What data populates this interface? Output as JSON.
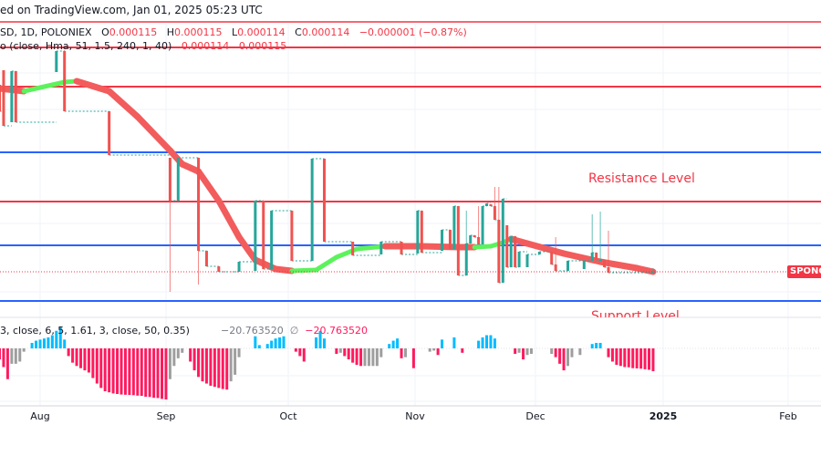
{
  "header": {
    "published": "ed on TradingView.com, Jan 01, 2025 05:23 UTC",
    "symbol": "SD, 1D, POLONIEX",
    "ohlc": {
      "o_label": "O",
      "o": "0.000115",
      "h_label": "H",
      "h": "0.000115",
      "l_label": "L",
      "l": "0.000114",
      "c_label": "C",
      "c": "0.000114",
      "change": "−0.000001 (−0.87%)"
    },
    "indicator": "o (close, Hma, 51, 1.5, 240, 1, 40)",
    "indicator_values": [
      "0.000114",
      "0.000115"
    ]
  },
  "annotations": {
    "resistance": "Resistance Level",
    "support": "Support Level"
  },
  "price_tag": "SPONG",
  "oscillator": {
    "params": "3, close, 6, 5, 1.61, 3, close, 50, 0.35)",
    "value1": "−20.763520",
    "empty_symbol": "∅",
    "value2": "−20.763520"
  },
  "x_axis": [
    "Aug",
    "Sep",
    "Oct",
    "Nov",
    "Dec",
    "2025",
    "Feb"
  ],
  "colors": {
    "up": "#26a69a",
    "down": "#ef5350",
    "hull_up": "#5cf25c",
    "hull_down": "#f25c5c",
    "level_red": "#f23645",
    "level_blue": "#2962ff",
    "hist_pos": "#00bcff",
    "hist_neg_falling": "#ff1a5e",
    "hist_neg_rising": "#9e9e9e"
  },
  "chart_data": [
    {
      "type": "candlestick",
      "x_ticks": [
        "Aug",
        "Sep",
        "Oct",
        "Nov",
        "Dec",
        "2025",
        "Feb"
      ],
      "last_price": 0.000114,
      "candles_ohlc": [
        [
          "2024-07-22",
          0.00016525,
          0.00016525,
          0.000158,
          0.000158
        ],
        [
          "2024-07-23",
          0.00016925,
          0.00016925,
          0.000154,
          0.000154
        ],
        [
          "2024-07-25",
          0.000155,
          0.000169,
          0.000155,
          0.000169
        ],
        [
          "2024-07-26",
          0.000169,
          0.000169,
          0.000155,
          0.000155
        ],
        [
          "2024-08-05",
          0.00016875,
          0.0001745,
          0.00016875,
          0.0001745
        ],
        [
          "2024-08-07",
          0.0001745,
          0.00017475,
          0.000158,
          0.000158
        ],
        [
          "2024-08-18",
          0.000158,
          0.000158,
          0.000146,
          0.000146
        ],
        [
          "2024-09-02",
          0.00014525,
          0.00014525,
          0.0001085,
          0.0001335
        ],
        [
          "2024-09-04",
          0.0001335,
          0.00014525,
          0.0001335,
          0.00014525
        ],
        [
          "2024-09-09",
          0.00014525,
          0.00014525,
          0.0001105,
          0.00011975
        ],
        [
          "2024-09-11",
          0.00011975,
          0.00011975,
          0.0001155,
          0.0001155
        ],
        [
          "2024-09-14",
          0.0001155,
          0.0001155,
          0.000114,
          0.000114
        ],
        [
          "2024-09-19",
          0.000114,
          0.00011675,
          0.000114,
          0.00011675
        ],
        [
          "2024-09-23",
          0.00011425,
          0.0001335,
          0.00011425,
          0.0001335
        ],
        [
          "2024-09-25",
          0.0001335,
          0.0001335,
          0.00011475,
          0.00011475
        ],
        [
          "2024-09-27",
          0.00011475,
          0.00013075,
          0.00011475,
          0.00013075
        ],
        [
          "2024-10-02",
          0.00013075,
          0.00013075,
          0.000117,
          0.000117
        ],
        [
          "2024-10-07",
          0.000117,
          0.000145,
          0.000117,
          0.000145
        ],
        [
          "2024-10-10",
          0.000145,
          0.000145,
          0.00012225,
          0.00012225
        ],
        [
          "2024-10-17",
          0.00012225,
          0.00012225,
          0.0001185,
          0.0001185
        ],
        [
          "2024-10-24",
          0.00011875,
          0.00012225,
          0.00011875,
          0.00012225
        ],
        [
          "2024-10-29",
          0.00012225,
          0.00012225,
          0.00011875,
          0.00011875
        ],
        [
          "2024-11-02",
          0.000119,
          0.00013075,
          0.000119,
          0.00013075
        ],
        [
          "2024-11-03",
          0.00013075,
          0.00013075,
          0.00011925,
          0.00011925
        ],
        [
          "2024-11-08",
          0.00011975,
          0.0001255,
          0.00011975,
          0.0001255
        ],
        [
          "2024-11-10",
          0.0001255,
          0.0001255,
          0.00012025,
          0.00012025
        ],
        [
          "2024-11-11",
          0.00012025,
          0.000132,
          0.00012025,
          0.000132
        ],
        [
          "2024-11-12",
          0.000132,
          0.000132,
          0.000113,
          0.000113
        ],
        [
          "2024-11-14",
          0.000113,
          0.00013075,
          0.000113,
          0.00012175
        ],
        [
          "2024-11-15",
          0.00012175,
          0.000124,
          0.00012175,
          0.000124
        ],
        [
          "2024-11-16",
          0.000124,
          0.000124,
          0.0001235,
          0.0001235
        ],
        [
          "2024-11-17",
          0.0001235,
          0.000132,
          0.0001215,
          0.0001215
        ],
        [
          "2024-11-18",
          0.0001215,
          0.000132,
          0.0001215,
          0.000132
        ],
        [
          "2024-11-19",
          0.000132,
          0.00013275,
          0.000132,
          0.00013275
        ],
        [
          "2024-11-20",
          0.0001325,
          0.0001325,
          0.000132,
          0.000132
        ],
        [
          "2024-11-21",
          0.000132,
          0.00013725,
          0.00012825,
          0.00012825
        ],
        [
          "2024-11-22",
          0.00012825,
          0.00013725,
          0.000111,
          0.000111
        ],
        [
          "2024-11-23",
          0.000111,
          0.000134,
          0.000111,
          0.000134
        ],
        [
          "2024-11-24",
          0.00012675,
          0.00012675,
          0.00011525,
          0.00011525
        ],
        [
          "2024-11-25",
          0.00011525,
          0.00012375,
          0.00011525,
          0.00012375
        ],
        [
          "2024-11-26",
          0.00012375,
          0.00012375,
          0.00011525,
          0.00011525
        ],
        [
          "2024-11-27",
          0.00011525,
          0.0001195,
          0.00011525,
          0.0001195
        ],
        [
          "2024-11-29",
          0.00011525,
          0.00011875,
          0.00011525,
          0.00011875
        ],
        [
          "2024-12-02",
          0.00011875,
          0.0001195,
          0.00011875,
          0.0001195
        ],
        [
          "2024-12-05",
          0.0001195,
          0.0001195,
          0.000116,
          0.000116
        ],
        [
          "2024-12-06",
          0.000116,
          0.0001235,
          0.00011425,
          0.00011425
        ],
        [
          "2024-12-09",
          0.00011425,
          0.000117,
          0.00011425,
          0.000117
        ],
        [
          "2024-12-13",
          0.00011475,
          0.000117,
          0.00011475,
          0.000117
        ],
        [
          "2024-12-15",
          0.000117,
          0.00012975,
          0.000117,
          0.00011925
        ],
        [
          "2024-12-16",
          0.00011925,
          0.00011925,
          0.00011725,
          0.00011725
        ],
        [
          "2024-12-17",
          0.00011725,
          0.0001305,
          0.00011725,
          0.00011725
        ],
        [
          "2024-12-18",
          0.00011725,
          0.00011725,
          0.00011525,
          0.00011525
        ],
        [
          "2024-12-19",
          0.00011525,
          0.00012525,
          0.00011375,
          0.00011375
        ],
        [
          "2024-12-30",
          0.000114,
          0.000115,
          0.000114,
          0.000114
        ]
      ],
      "hull_ribbon": [
        [
          "2024-07-22",
          0.00016425
        ],
        [
          "2024-07-28",
          0.0001635
        ],
        [
          "2024-08-07",
          0.000166
        ],
        [
          "2024-08-10",
          0.00016625
        ],
        [
          "2024-08-18",
          0.0001635
        ],
        [
          "2024-08-25",
          0.0001565
        ],
        [
          "2024-09-02",
          0.00014725
        ],
        [
          "2024-09-05",
          0.0001435
        ],
        [
          "2024-09-09",
          0.0001415
        ],
        [
          "2024-09-14",
          0.0001335
        ],
        [
          "2024-09-19",
          0.0001235
        ],
        [
          "2024-09-23",
          0.00011725
        ],
        [
          "2024-09-28",
          0.00011475
        ],
        [
          "2024-10-02",
          0.00011425
        ],
        [
          "2024-10-08",
          0.0001145
        ],
        [
          "2024-10-13",
          0.000118
        ],
        [
          "2024-10-18",
          0.00012025
        ],
        [
          "2024-10-25",
          0.000121
        ],
        [
          "2024-11-03",
          0.000121
        ],
        [
          "2024-11-12",
          0.00012075
        ],
        [
          "2024-11-16",
          0.00012075
        ],
        [
          "2024-11-20",
          0.000121
        ],
        [
          "2024-11-23",
          0.000122
        ],
        [
          "2024-11-25",
          0.000123
        ],
        [
          "2024-11-29",
          0.00012175
        ],
        [
          "2024-12-08",
          0.000119
        ],
        [
          "2024-12-17",
          0.00011675
        ],
        [
          "2024-12-26",
          0.000115
        ],
        [
          "2024-12-30",
          0.000114
        ]
      ],
      "levels": [
        {
          "price": 0.0001825,
          "color": "red"
        },
        {
          "price": 0.0001755,
          "color": "red"
        },
        {
          "price": 0.00016475,
          "color": "red"
        },
        {
          "price": 0.00014675,
          "color": "blue"
        },
        {
          "price": 0.00013325,
          "color": "red",
          "label": "Resistance Level"
        },
        {
          "price": 0.00012125,
          "color": "blue"
        },
        {
          "price": 0.000106,
          "color": "blue",
          "label": "Support Level"
        }
      ]
    },
    {
      "type": "bar",
      "latest_value": -20.76352,
      "histogram": [
        [
          "2024-07-22",
          -10
        ],
        [
          "2024-07-23",
          -17
        ],
        [
          "2024-07-24",
          -28
        ],
        [
          "2024-07-25",
          -14
        ],
        [
          "2024-07-26",
          -14
        ],
        [
          "2024-07-27",
          -12
        ],
        [
          "2024-07-28",
          -3
        ],
        [
          "2024-07-30",
          5
        ],
        [
          "2024-07-31",
          7
        ],
        [
          "2024-08-01",
          8
        ],
        [
          "2024-08-02",
          9
        ],
        [
          "2024-08-03",
          10
        ],
        [
          "2024-08-04",
          12
        ],
        [
          "2024-08-05",
          16
        ],
        [
          "2024-08-06",
          20
        ],
        [
          "2024-08-07",
          8
        ],
        [
          "2024-08-08",
          -7
        ],
        [
          "2024-08-09",
          -13
        ],
        [
          "2024-08-10",
          -16
        ],
        [
          "2024-08-11",
          -18
        ],
        [
          "2024-08-12",
          -20
        ],
        [
          "2024-08-13",
          -22
        ],
        [
          "2024-08-14",
          -27
        ],
        [
          "2024-08-15",
          -32
        ],
        [
          "2024-08-16",
          -36
        ],
        [
          "2024-08-17",
          -39
        ],
        [
          "2024-08-18",
          -40
        ],
        [
          "2024-08-19",
          -41
        ],
        [
          "2024-08-20",
          -41.5
        ],
        [
          "2024-08-21",
          -42
        ],
        [
          "2024-08-22",
          -42.2
        ],
        [
          "2024-08-23",
          -42.4
        ],
        [
          "2024-08-24",
          -42.6
        ],
        [
          "2024-08-25",
          -43
        ],
        [
          "2024-08-26",
          -43.2
        ],
        [
          "2024-08-27",
          -44
        ],
        [
          "2024-08-28",
          -44.2
        ],
        [
          "2024-08-29",
          -45
        ],
        [
          "2024-08-30",
          -45.2
        ],
        [
          "2024-08-31",
          -46
        ],
        [
          "2024-09-01",
          -46.5
        ],
        [
          "2024-09-02",
          -28
        ],
        [
          "2024-09-03",
          -16
        ],
        [
          "2024-09-04",
          -9
        ],
        [
          "2024-09-05",
          -4
        ],
        [
          "2024-09-07",
          -12
        ],
        [
          "2024-09-08",
          -20
        ],
        [
          "2024-09-09",
          -26
        ],
        [
          "2024-09-10",
          -30
        ],
        [
          "2024-09-11",
          -32
        ],
        [
          "2024-09-12",
          -34
        ],
        [
          "2024-09-13",
          -35
        ],
        [
          "2024-09-14",
          -36
        ],
        [
          "2024-09-15",
          -37
        ],
        [
          "2024-09-16",
          -37.5
        ],
        [
          "2024-09-17",
          -30
        ],
        [
          "2024-09-18",
          -24
        ],
        [
          "2024-09-19",
          -8
        ],
        [
          "2024-09-23",
          11
        ],
        [
          "2024-09-24",
          3
        ],
        [
          "2024-09-26",
          4
        ],
        [
          "2024-09-27",
          7
        ],
        [
          "2024-09-28",
          9
        ],
        [
          "2024-09-29",
          10
        ],
        [
          "2024-09-30",
          11
        ],
        [
          "2024-10-03",
          -3
        ],
        [
          "2024-10-04",
          -7
        ],
        [
          "2024-10-05",
          -12
        ],
        [
          "2024-10-08",
          10
        ],
        [
          "2024-10-09",
          16
        ],
        [
          "2024-10-10",
          9
        ],
        [
          "2024-10-13",
          -5
        ],
        [
          "2024-10-14",
          -4
        ],
        [
          "2024-10-15",
          -7
        ],
        [
          "2024-10-16",
          -10
        ],
        [
          "2024-10-17",
          -13
        ],
        [
          "2024-10-18",
          -15
        ],
        [
          "2024-10-19",
          -16
        ],
        [
          "2024-10-20",
          -16
        ],
        [
          "2024-10-21",
          -16
        ],
        [
          "2024-10-22",
          -16
        ],
        [
          "2024-10-23",
          -16
        ],
        [
          "2024-10-24",
          -8
        ],
        [
          "2024-10-26",
          4
        ],
        [
          "2024-10-27",
          7
        ],
        [
          "2024-10-28",
          9
        ],
        [
          "2024-10-29",
          -9
        ],
        [
          "2024-10-30",
          -8
        ],
        [
          "2024-11-01",
          -18
        ],
        [
          "2024-11-05",
          -3
        ],
        [
          "2024-11-06",
          -2
        ],
        [
          "2024-11-07",
          -6
        ],
        [
          "2024-11-08",
          8
        ],
        [
          "2024-11-11",
          10
        ],
        [
          "2024-11-13",
          -4
        ],
        [
          "2024-11-17",
          7
        ],
        [
          "2024-11-18",
          10
        ],
        [
          "2024-11-19",
          12
        ],
        [
          "2024-11-20",
          12
        ],
        [
          "2024-11-21",
          9
        ],
        [
          "2024-11-26",
          -5
        ],
        [
          "2024-11-27",
          -4
        ],
        [
          "2024-11-28",
          -10
        ],
        [
          "2024-11-29",
          -6
        ],
        [
          "2024-11-30",
          -5
        ],
        [
          "2024-12-05",
          -5
        ],
        [
          "2024-12-06",
          -8
        ],
        [
          "2024-12-07",
          -14
        ],
        [
          "2024-12-08",
          -20
        ],
        [
          "2024-12-09",
          -16
        ],
        [
          "2024-12-10",
          -8
        ],
        [
          "2024-12-12",
          -6
        ],
        [
          "2024-12-15",
          4
        ],
        [
          "2024-12-16",
          5
        ],
        [
          "2024-12-17",
          5
        ],
        [
          "2024-12-19",
          -8
        ],
        [
          "2024-12-20",
          -12
        ],
        [
          "2024-12-21",
          -15
        ],
        [
          "2024-12-22",
          -16
        ],
        [
          "2024-12-23",
          -17
        ],
        [
          "2024-12-24",
          -17.2
        ],
        [
          "2024-12-25",
          -18
        ],
        [
          "2024-12-26",
          -18.2
        ],
        [
          "2024-12-27",
          -18.5
        ],
        [
          "2024-12-28",
          -19
        ],
        [
          "2024-12-29",
          -19.5
        ],
        [
          "2024-12-30",
          -20.76352
        ]
      ]
    }
  ]
}
